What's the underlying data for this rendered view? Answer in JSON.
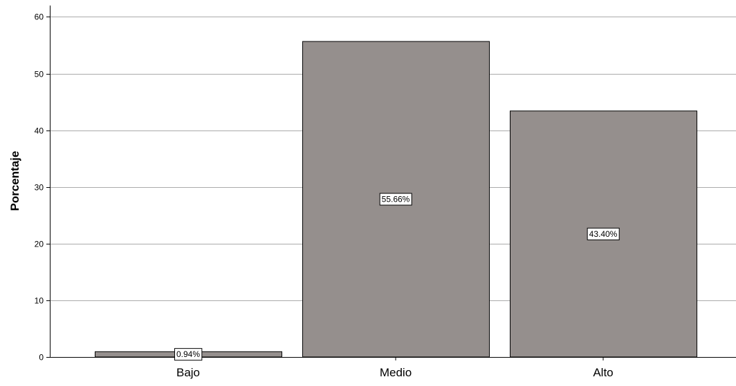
{
  "chart_data": {
    "type": "bar",
    "title": "",
    "xlabel": "",
    "ylabel": "Porcentaje",
    "categories": [
      "Bajo",
      "Medio",
      "Alto"
    ],
    "values": [
      0.94,
      55.66,
      43.4
    ],
    "data_labels": [
      "0.94%",
      "55.66%",
      "43.40%"
    ],
    "ylim": [
      0,
      62
    ],
    "yticks": [
      0,
      10,
      20,
      30,
      40,
      50,
      60
    ],
    "ytick_labels": [
      "0",
      "10",
      "20",
      "30",
      "40",
      "50",
      "60"
    ],
    "grid": "horizontal",
    "bar_color": "#958f8d",
    "bar_edge_color": "#000000",
    "grid_color": "#aaaaaa"
  }
}
